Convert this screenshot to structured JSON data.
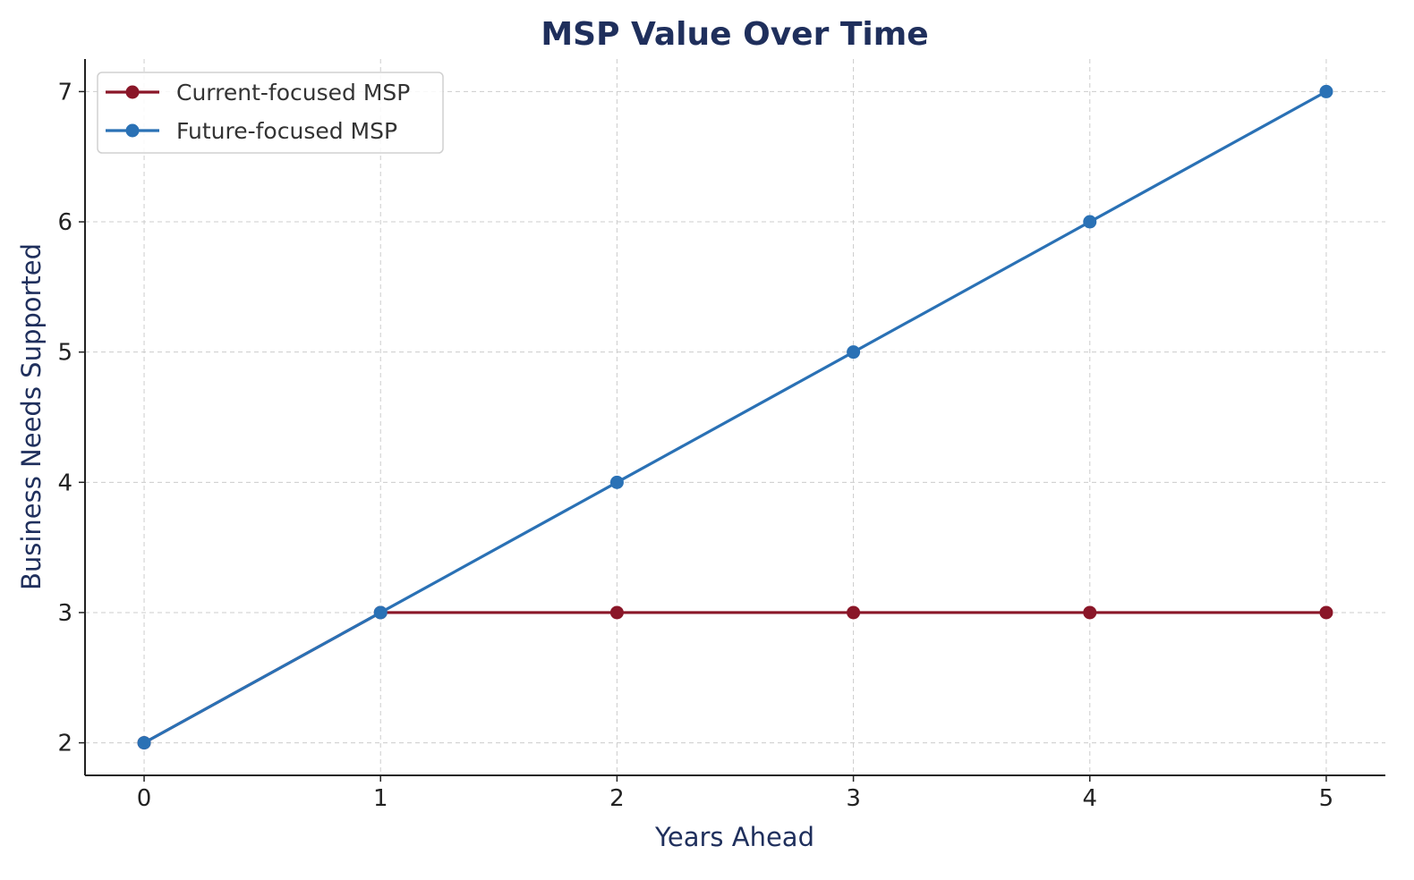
{
  "chart_data": {
    "type": "line",
    "title": "MSP Value Over Time",
    "xlabel": "Years Ahead",
    "ylabel": "Business Needs Supported",
    "x": [
      0,
      1,
      2,
      3,
      4,
      5
    ],
    "xlim": [
      -0.25,
      5.25
    ],
    "ylim": [
      1.75,
      7.25
    ],
    "xticks": [
      0,
      1,
      2,
      3,
      4,
      5
    ],
    "yticks": [
      2,
      3,
      4,
      5,
      6,
      7
    ],
    "grid": true,
    "legend_position": "top-left",
    "series": [
      {
        "name": "Current-focused MSP",
        "values": [
          2,
          3,
          3,
          3,
          3,
          3
        ],
        "color": "#8a1628",
        "marker": "circle"
      },
      {
        "name": "Future-focused MSP",
        "values": [
          2,
          3,
          4,
          5,
          6,
          7
        ],
        "color": "#2a71b5",
        "marker": "circle"
      }
    ],
    "colors": {
      "title": "#1f2f5c",
      "axis_label": "#1f2f5c"
    }
  }
}
